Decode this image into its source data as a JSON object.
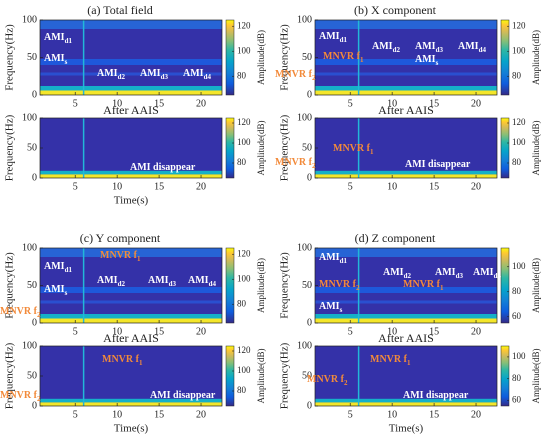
{
  "chart_data": [
    {
      "type": "spectrogram",
      "title": "(a) Total field",
      "ylabel": "Frequency(Hz)",
      "xlabel": "Time(s)",
      "clabel": "Amplitude(dB)",
      "xlim": [
        0.8,
        22.5
      ],
      "xticks": [
        5,
        10,
        15,
        20
      ],
      "ylim": [
        0,
        100
      ],
      "yticks": [
        0,
        50,
        100
      ],
      "top": {
        "clim": [
          65,
          125
        ],
        "cticks": [
          80,
          100,
          120
        ],
        "annotations": [
          {
            "text": "AMI",
            "sub": "d1",
            "color": "#ffffff"
          },
          {
            "text": "AMI",
            "sub": "s",
            "color": "#ffffff"
          },
          {
            "text": "AMI",
            "sub": "d2",
            "color": "#ffffff"
          },
          {
            "text": "AMI",
            "sub": "d3",
            "color": "#ffffff"
          },
          {
            "text": "AMI",
            "sub": "d4",
            "color": "#ffffff"
          }
        ]
      },
      "bottom": {
        "title": "After AAIS",
        "clim": [
          65,
          125
        ],
        "cticks": [
          80,
          100,
          120
        ],
        "annotations": [
          {
            "text": "AMI  disappear",
            "color": "#ffffff"
          }
        ]
      }
    },
    {
      "type": "spectrogram",
      "title": "(b) X component",
      "ylabel": "Frequency(Hz)",
      "clabel": "Amplitude(dB)",
      "xlim": [
        0.8,
        22.5
      ],
      "xticks": [
        5,
        10,
        15,
        20
      ],
      "ylim": [
        0,
        100
      ],
      "yticks": [
        0,
        50,
        100
      ],
      "top": {
        "clim": [
          65,
          125
        ],
        "cticks": [
          80,
          100,
          120
        ],
        "annotations": [
          {
            "text": "AMI",
            "sub": "d1",
            "color": "#ffffff"
          },
          {
            "text": "MNVR f",
            "sub": "1",
            "color": "#f28a3a"
          },
          {
            "text": "AMI",
            "sub": "d2",
            "color": "#ffffff"
          },
          {
            "text": "AMI",
            "sub": "d3",
            "color": "#ffffff"
          },
          {
            "text": "AMI",
            "sub": "d4",
            "color": "#ffffff"
          },
          {
            "text": "AMI",
            "sub": "s",
            "color": "#ffffff"
          },
          {
            "text": "MNVR f",
            "sub": "2",
            "color": "#f28a3a"
          }
        ]
      },
      "bottom": {
        "title": "After AAIS",
        "clim": [
          65,
          125
        ],
        "cticks": [
          80,
          100,
          120
        ],
        "annotations": [
          {
            "text": "MNVR f",
            "sub": "1",
            "color": "#f28a3a"
          },
          {
            "text": "MNVR f",
            "sub": "2",
            "color": "#f28a3a"
          },
          {
            "text": "AMI  disappear",
            "color": "#ffffff"
          }
        ]
      }
    },
    {
      "type": "spectrogram",
      "title": "(c) Y component",
      "ylabel": "Frequency(Hz)",
      "xlabel": "Time(s)",
      "clabel": "Amplitude(dB)",
      "xlim": [
        0.8,
        22.5
      ],
      "xticks": [
        5,
        10,
        15,
        20
      ],
      "ylim": [
        0,
        100
      ],
      "yticks": [
        0,
        50,
        100
      ],
      "top": {
        "clim": [
          65,
          125
        ],
        "cticks": [
          80,
          100,
          120
        ],
        "annotations": [
          {
            "text": "AMI",
            "sub": "d1",
            "color": "#ffffff"
          },
          {
            "text": "MNVR f",
            "sub": "1",
            "color": "#f28a3a"
          },
          {
            "text": "AMI",
            "sub": "d2",
            "color": "#ffffff"
          },
          {
            "text": "AMI",
            "sub": "d3",
            "color": "#ffffff"
          },
          {
            "text": "AMI",
            "sub": "d4",
            "color": "#ffffff"
          },
          {
            "text": "AMI",
            "sub": "s",
            "color": "#ffffff"
          },
          {
            "text": "MNVR f",
            "sub": "2",
            "color": "#f28a3a"
          }
        ]
      },
      "bottom": {
        "title": "After AAIS",
        "clim": [
          65,
          125
        ],
        "cticks": [
          80,
          100,
          120
        ],
        "annotations": [
          {
            "text": "MNVR f",
            "sub": "1",
            "color": "#f28a3a"
          },
          {
            "text": "MNVR f",
            "sub": "2",
            "color": "#f28a3a"
          },
          {
            "text": "AMI  disappear",
            "color": "#ffffff"
          }
        ]
      }
    },
    {
      "type": "spectrogram",
      "title": "(d) Z component",
      "ylabel": "Frequency(Hz)",
      "xlabel": "Time(s)",
      "clabel": "Amplitude(dB)",
      "xlim": [
        0.8,
        22.5
      ],
      "xticks": [
        5,
        10,
        15,
        20
      ],
      "ylim": [
        0,
        100
      ],
      "yticks": [
        0,
        50,
        100
      ],
      "top": {
        "clim": [
          55,
          115
        ],
        "cticks": [
          60,
          80,
          100
        ],
        "annotations": [
          {
            "text": "AMI",
            "sub": "d1",
            "color": "#ffffff"
          },
          {
            "text": "AMI",
            "sub": "d2",
            "color": "#ffffff"
          },
          {
            "text": "AMI",
            "sub": "d3",
            "color": "#ffffff"
          },
          {
            "text": "AMI",
            "sub": "d4",
            "color": "#ffffff"
          },
          {
            "text": "MNVR f",
            "sub": "2",
            "color": "#f28a3a"
          },
          {
            "text": "MNVR f",
            "sub": "1",
            "color": "#f28a3a"
          },
          {
            "text": "AMI",
            "sub": "s",
            "color": "#ffffff"
          }
        ]
      },
      "bottom": {
        "title": "After AAIS",
        "clim": [
          55,
          110
        ],
        "cticks": [
          60,
          80,
          100
        ],
        "annotations": [
          {
            "text": "MNVR f",
            "sub": "1",
            "color": "#f28a3a"
          },
          {
            "text": "MNVR f",
            "sub": "2",
            "color": "#f28a3a"
          },
          {
            "text": "AMI  disappear",
            "color": "#ffffff"
          }
        ]
      }
    }
  ]
}
